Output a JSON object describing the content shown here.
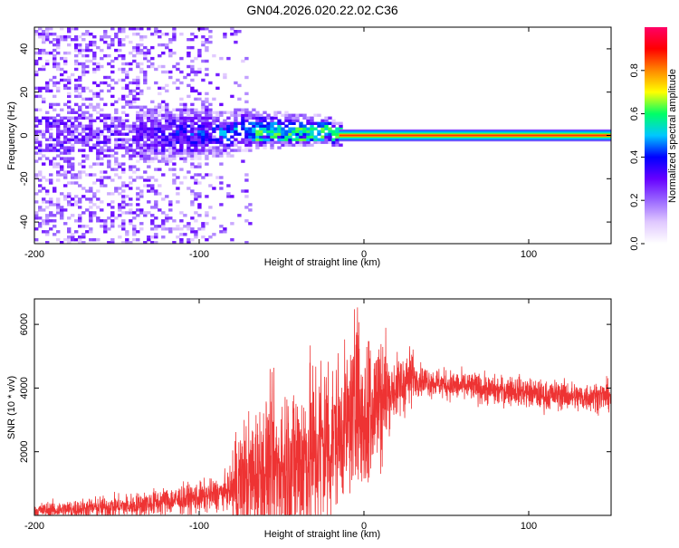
{
  "title": "GN04.2026.020.22.02.C36",
  "chart_data": [
    {
      "type": "heatmap",
      "xlabel": "Height of straight line (km)",
      "ylabel": "Frequency (Hz)",
      "xlim": [
        -200,
        150
      ],
      "ylim": [
        -50,
        50
      ],
      "x_ticks": [
        "-200",
        "-100",
        "0",
        "100"
      ],
      "y_ticks": [
        "-40",
        "-20",
        "0",
        "20",
        "40"
      ],
      "colorbar": {
        "label": "Normalized spectral amplitude",
        "range": [
          0,
          1
        ],
        "ticks": [
          "0.0",
          "0.2",
          "0.4",
          "0.6",
          "0.8"
        ],
        "colormap": [
          "#ffffff",
          "#e0c8ff",
          "#9966ff",
          "#6600ff",
          "#0000ff",
          "#00c8ff",
          "#00ff66",
          "#ffff00",
          "#ff8800",
          "#ff0000",
          "#ff0066"
        ]
      },
      "description_values": {
        "carrier_frequency_hz": 0,
        "noise_region_end_km": -70,
        "strong_line_start_km": -15
      }
    },
    {
      "type": "line",
      "xlabel": "Height of straight line (km)",
      "ylabel": "SNR (10 * v/v)",
      "xlim": [
        -200,
        150
      ],
      "ylim": [
        0,
        6800
      ],
      "x_ticks": [
        "-200",
        "-100",
        "0",
        "100"
      ],
      "y_ticks": [
        "2000",
        "4000",
        "6000"
      ],
      "color": "#ee3333",
      "series": [
        {
          "x": [
            -200,
            -180,
            -160,
            -140,
            -120,
            -100,
            -90,
            -80,
            -70,
            -60,
            -50,
            -40,
            -30,
            -20,
            -10,
            -5,
            0,
            5,
            10,
            20,
            25,
            30,
            40,
            50,
            60,
            70,
            80,
            90,
            100,
            110,
            120,
            130,
            140,
            150
          ],
          "y": [
            150,
            180,
            250,
            300,
            450,
            550,
            650,
            800,
            1100,
            1400,
            1500,
            1700,
            2000,
            2400,
            2900,
            3100,
            3200,
            3500,
            3700,
            4000,
            4200,
            4300,
            4200,
            4100,
            4050,
            4000,
            3900,
            3950,
            3850,
            3750,
            3800,
            3700,
            3750,
            3750
          ]
        }
      ]
    }
  ]
}
